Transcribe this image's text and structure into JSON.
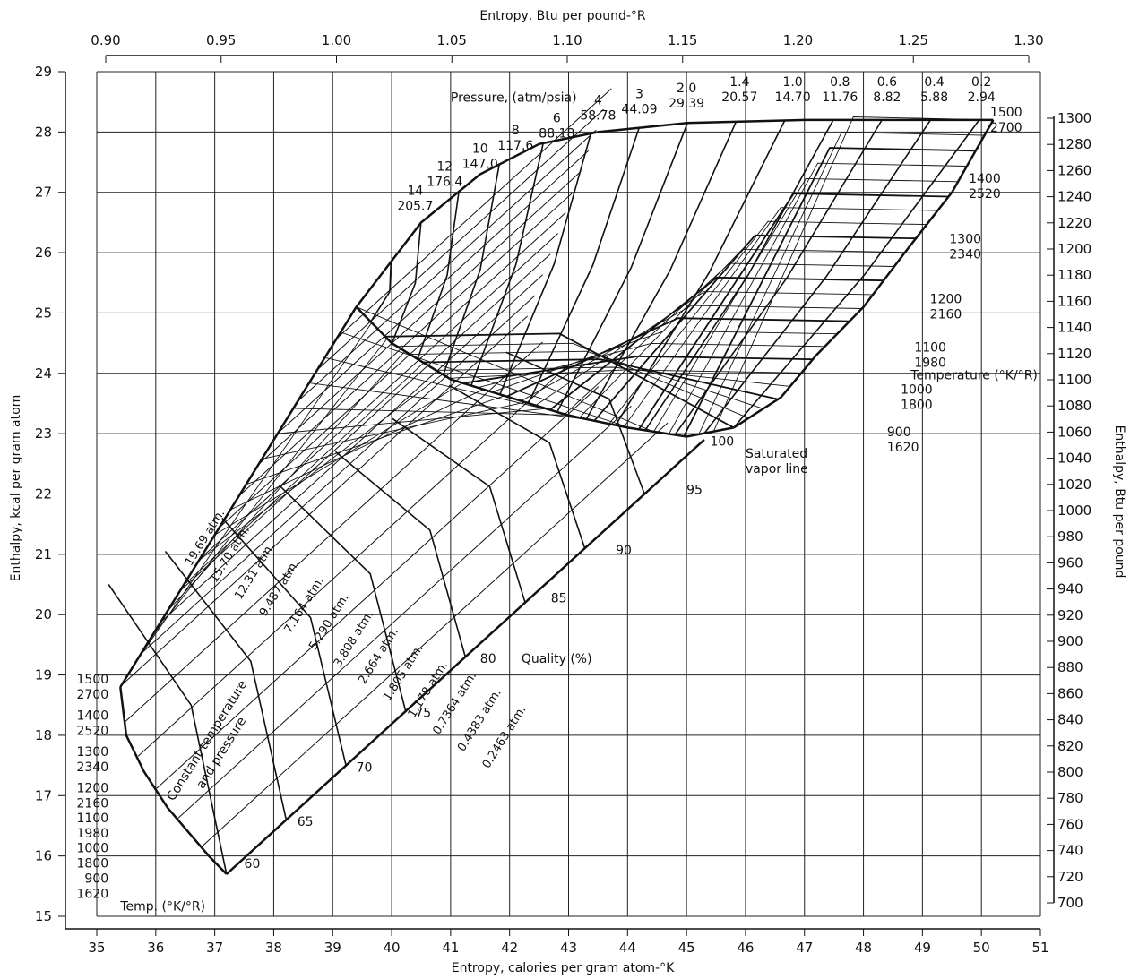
{
  "chart_data": {
    "type": "line",
    "title": "",
    "xlabel": "Entropy, calories per gram atom-°K",
    "ylabel": "Enthalpy, kcal per gram atom",
    "x2label": "Entropy, Btu per pound-°R",
    "y2label": "Enthalpy, Btu per pound",
    "xlim": [
      35,
      51
    ],
    "ylim": [
      15,
      29
    ],
    "x2lim": [
      0.9,
      1.3
    ],
    "y2lim": [
      700,
      1300
    ],
    "grid": true,
    "x_ticks": [
      "35",
      "36",
      "37",
      "38",
      "39",
      "40",
      "41",
      "42",
      "43",
      "44",
      "45",
      "46",
      "47",
      "48",
      "49",
      "50",
      "51"
    ],
    "y_ticks": [
      "15",
      "16",
      "17",
      "18",
      "19",
      "20",
      "21",
      "22",
      "23",
      "24",
      "25",
      "26",
      "27",
      "28",
      "29"
    ],
    "x2_ticks": [
      "0.90",
      "0.95",
      "1.00",
      "1.05",
      "1.10",
      "1.15",
      "1.20",
      "1.25",
      "1.30"
    ],
    "y2_ticks": [
      "700",
      "720",
      "740",
      "760",
      "780",
      "800",
      "820",
      "840",
      "860",
      "880",
      "900",
      "920",
      "940",
      "960",
      "980",
      "1000",
      "1020",
      "1040",
      "1060",
      "1080",
      "1100",
      "1120",
      "1140",
      "1160",
      "1180",
      "1200",
      "1220",
      "1240",
      "1260",
      "1280",
      "1300"
    ],
    "labels": {
      "pressure": "Pressure, (atm/psia)",
      "temperature": "Temperature (°K/°R)",
      "temp": "Temp. (°K/°R)",
      "quality": "Quality (%)",
      "saturated_line": [
        "Saturated",
        "vapor line"
      ],
      "constant_tp": [
        "Constant temperature",
        "and pressure"
      ]
    },
    "temperature_labels_right": [
      {
        "k": "1500",
        "r": "2700",
        "h": 28.2
      },
      {
        "k": "1400",
        "r": "2520",
        "h": 27.1
      },
      {
        "k": "1300",
        "r": "2340",
        "h": 26.1
      },
      {
        "k": "1200",
        "r": "2160",
        "h": 25.1
      },
      {
        "k": "1100",
        "r": "1980",
        "h": 24.3
      },
      {
        "k": "1000",
        "r": "1800",
        "h": 23.6
      },
      {
        "k": "900",
        "r": "1620",
        "h": 22.9
      }
    ],
    "temperature_labels_left": [
      {
        "k": "1500",
        "r": "2700",
        "h": 18.8
      },
      {
        "k": "1400",
        "r": "2520",
        "h": 18.2
      },
      {
        "k": "1300",
        "r": "2340",
        "h": 17.6
      },
      {
        "k": "1200",
        "r": "2160",
        "h": 17.0
      },
      {
        "k": "1100",
        "r": "1980",
        "h": 16.5
      },
      {
        "k": "1000",
        "r": "1800",
        "h": 16.0
      },
      {
        "k": "900",
        "r": "1620",
        "h": 15.5
      }
    ],
    "pressure_labels_top": [
      {
        "atm": "14",
        "psia": "205.7",
        "s": 40.4,
        "h": 26.9
      },
      {
        "atm": "12",
        "psia": "176.4",
        "s": 40.9,
        "h": 27.3
      },
      {
        "atm": "10",
        "psia": "147.0",
        "s": 41.5,
        "h": 27.6
      },
      {
        "atm": "8",
        "psia": "117.6",
        "s": 42.1,
        "h": 27.9
      },
      {
        "atm": "6",
        "psia": "88.18",
        "s": 42.8,
        "h": 28.1
      },
      {
        "atm": "4",
        "psia": "58.78",
        "s": 43.5,
        "h": 28.4
      },
      {
        "atm": "3",
        "psia": "44.09",
        "s": 44.2,
        "h": 28.5
      },
      {
        "atm": "2.0",
        "psia": "29.39",
        "s": 45.0,
        "h": 28.6
      },
      {
        "atm": "1.4",
        "psia": "20.57",
        "s": 45.9,
        "h": 28.7
      },
      {
        "atm": "1.0",
        "psia": "14.70",
        "s": 46.8,
        "h": 28.7
      },
      {
        "atm": "0.8",
        "psia": "11.76",
        "s": 47.6,
        "h": 28.7
      },
      {
        "atm": "0.6",
        "psia": "8.82",
        "s": 48.4,
        "h": 28.7
      },
      {
        "atm": "0.4",
        "psia": "5.88",
        "s": 49.2,
        "h": 28.7
      },
      {
        "atm": "0.2",
        "psia": "2.94",
        "s": 50.0,
        "h": 28.7
      }
    ],
    "constant_tp_labels": [
      "19.69 atm.",
      "15.70 atm.",
      "12.31 atm.",
      "9.487 atm.",
      "7.164 atm.",
      "5.290 atm.",
      "3.808 atm.",
      "2.664 atm.",
      "1.805 atm.",
      "1.178 atm.",
      "0.7364 atm.",
      "0.4383 atm.",
      "0.2463 atm."
    ],
    "quality_lines": [
      {
        "q": "60",
        "label_s": 37.5,
        "label_h": 15.8
      },
      {
        "q": "65",
        "label_s": 38.4,
        "label_h": 16.5
      },
      {
        "q": "70",
        "label_s": 39.4,
        "label_h": 17.4
      },
      {
        "q": "75",
        "label_s": 40.4,
        "label_h": 18.3
      },
      {
        "q": "80",
        "label_s": 41.5,
        "label_h": 19.2
      },
      {
        "q": "85",
        "label_s": 42.7,
        "label_h": 20.2
      },
      {
        "q": "90",
        "label_s": 43.8,
        "label_h": 21.0
      },
      {
        "q": "95",
        "label_s": 45.0,
        "label_h": 22.0
      },
      {
        "q": "100",
        "label_s": 45.4,
        "label_h": 22.8
      }
    ],
    "saturated_vapor_line": [
      [
        39.4,
        25.1
      ],
      [
        40.0,
        24.5
      ],
      [
        41.0,
        23.9
      ],
      [
        42.0,
        23.6
      ],
      [
        43.0,
        23.3
      ],
      [
        44.0,
        23.1
      ],
      [
        45.0,
        22.95
      ],
      [
        45.8,
        23.1
      ]
    ],
    "saturated_liquid_boundary": [
      [
        35.4,
        18.8
      ],
      [
        35.5,
        18.0
      ],
      [
        35.8,
        17.4
      ],
      [
        36.2,
        16.8
      ],
      [
        36.9,
        16.0
      ],
      [
        37.2,
        15.7
      ]
    ],
    "two_phase_lower_edge": [
      [
        37.2,
        15.7
      ],
      [
        45.3,
        22.9
      ]
    ],
    "two_phase_upper_edge": [
      [
        35.4,
        18.8
      ],
      [
        39.4,
        25.1
      ]
    ],
    "superheat_upper_boundary": [
      [
        39.4,
        25.1
      ],
      [
        40.5,
        26.5
      ],
      [
        41.5,
        27.3
      ],
      [
        42.5,
        27.8
      ],
      [
        43.5,
        28.0
      ],
      [
        45.0,
        28.15
      ],
      [
        47.0,
        28.2
      ],
      [
        50.2,
        28.2
      ]
    ],
    "superheat_right_boundary": [
      [
        50.2,
        28.2
      ],
      [
        49.5,
        27.0
      ],
      [
        48.7,
        26.0
      ],
      [
        48.0,
        25.1
      ],
      [
        47.2,
        24.3
      ],
      [
        46.6,
        23.6
      ],
      [
        45.8,
        23.1
      ]
    ]
  }
}
